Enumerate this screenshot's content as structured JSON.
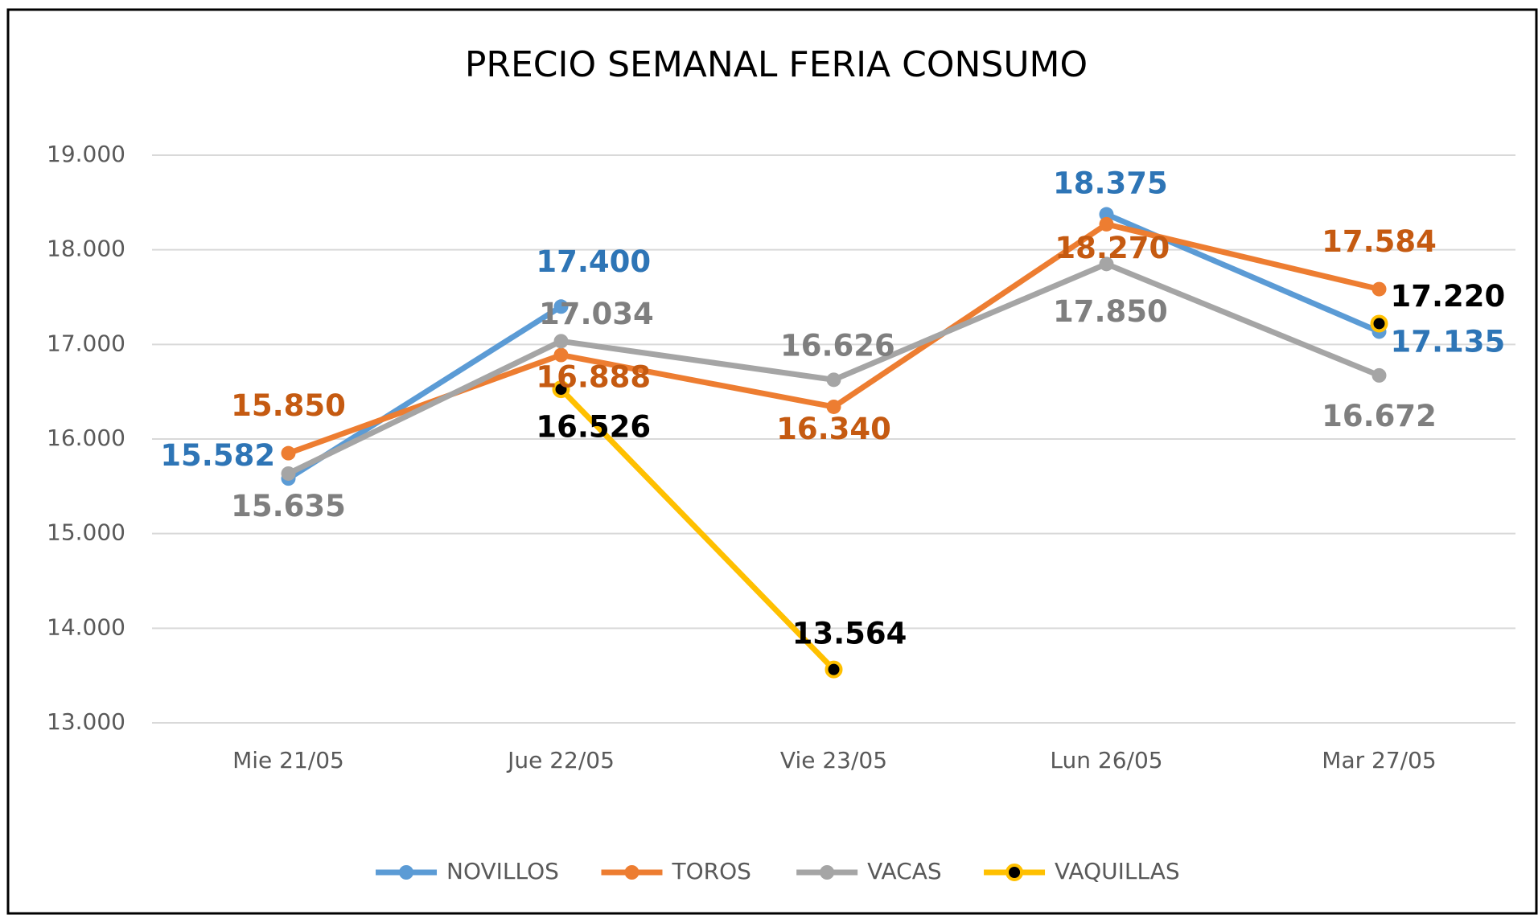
{
  "chart_data": {
    "type": "line",
    "title": "PRECIO SEMANAL FERIA CONSUMO",
    "categories": [
      "Mie 21/05",
      "Jue 22/05",
      "Vie 23/05",
      "Lun 26/05",
      "Mar 27/05"
    ],
    "series": [
      {
        "name": "NOVILLOS",
        "color": "#5b9bd5",
        "label_color": "#2e75b6",
        "values": [
          15582,
          17400,
          null,
          18375,
          17135
        ],
        "value_labels": [
          "15.582",
          "17.400",
          null,
          "18.375",
          "17.135"
        ]
      },
      {
        "name": "TOROS",
        "color": "#ed7d31",
        "label_color": "#c55a11",
        "values": [
          15850,
          16888,
          16340,
          18270,
          17584
        ],
        "value_labels": [
          "15.850",
          "16.888",
          "16.340",
          "18.270",
          "17.584"
        ]
      },
      {
        "name": "VACAS",
        "color": "#a5a5a5",
        "label_color": "#7f7f7f",
        "values": [
          15635,
          17034,
          16626,
          17850,
          16672
        ],
        "value_labels": [
          "15.635",
          "17.034",
          "16.626",
          "17.850",
          "16.672"
        ]
      },
      {
        "name": "VAQUILLAS",
        "color": "#ffc000",
        "marker_color": "#000000",
        "label_color": "#000000",
        "values": [
          null,
          16526,
          13564,
          null,
          17220
        ],
        "value_labels": [
          null,
          "16.526",
          "13.564",
          null,
          "17.220"
        ]
      }
    ],
    "ylim": [
      13000,
      19000
    ],
    "yticks": [
      {
        "value": 13000,
        "label": "13.000"
      },
      {
        "value": 14000,
        "label": "14.000"
      },
      {
        "value": 15000,
        "label": "15.000"
      },
      {
        "value": 16000,
        "label": "16.000"
      },
      {
        "value": 17000,
        "label": "17.000"
      },
      {
        "value": 18000,
        "label": "18.000"
      },
      {
        "value": 19000,
        "label": "19.000"
      }
    ],
    "grid": true,
    "legend": "bottom"
  }
}
